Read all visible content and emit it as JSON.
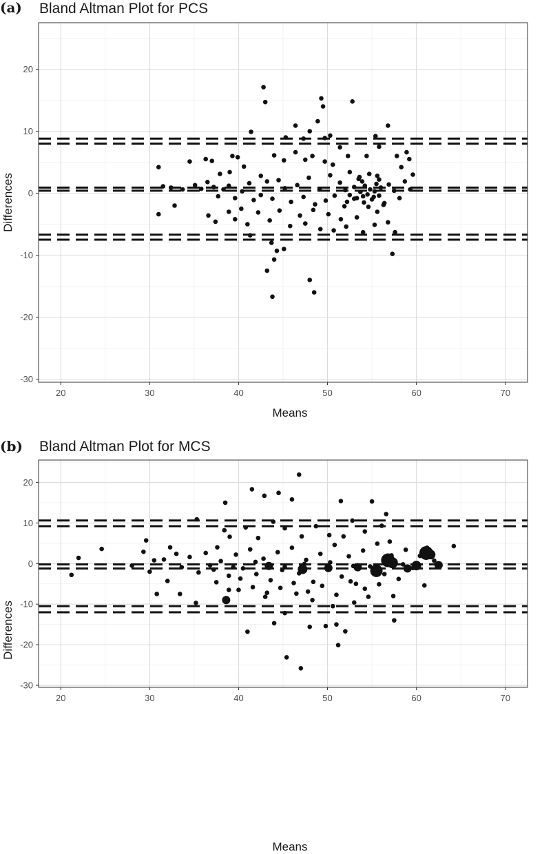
{
  "chart_data": [
    {
      "type": "scatter",
      "panel_label": "(a)",
      "title": "Bland Altman Plot for PCS",
      "xlabel": "Means",
      "ylabel": "Differences",
      "xlim": [
        17.5,
        72.5
      ],
      "ylim": [
        -30.5,
        27.5
      ],
      "x_ticks": [
        20,
        30,
        40,
        50,
        60,
        70
      ],
      "y_ticks": [
        -30,
        -20,
        -10,
        0,
        10,
        20
      ],
      "grid": true,
      "reference_lines": [
        8.8,
        8.0,
        0.9,
        0.4,
        -6.7,
        -7.5
      ],
      "points": [
        [
          42.8,
          17.1
        ],
        [
          43.0,
          14.7
        ],
        [
          49.3,
          15.3
        ],
        [
          49.5,
          14.0
        ],
        [
          52.8,
          14.8
        ],
        [
          46.4,
          10.9
        ],
        [
          48.9,
          11.6
        ],
        [
          47.3,
          8.8
        ],
        [
          48.0,
          10.0
        ],
        [
          41.4,
          9.9
        ],
        [
          45.3,
          9.0
        ],
        [
          49.7,
          8.9
        ],
        [
          56.8,
          10.9
        ],
        [
          55.4,
          9.2
        ],
        [
          50.3,
          9.3
        ],
        [
          31.0,
          4.2
        ],
        [
          34.5,
          5.1
        ],
        [
          36.3,
          5.5
        ],
        [
          37.0,
          5.2
        ],
        [
          39.3,
          6.0
        ],
        [
          39.9,
          5.8
        ],
        [
          37.9,
          3.1
        ],
        [
          39.0,
          3.4
        ],
        [
          40.6,
          4.3
        ],
        [
          42.5,
          2.8
        ],
        [
          44.0,
          6.1
        ],
        [
          45.1,
          5.3
        ],
        [
          46.4,
          6.6
        ],
        [
          47.5,
          5.4
        ],
        [
          48.3,
          6.0
        ],
        [
          49.7,
          5.1
        ],
        [
          50.6,
          4.6
        ],
        [
          52.3,
          6.0
        ],
        [
          51.4,
          7.4
        ],
        [
          54.4,
          6.0
        ],
        [
          55.8,
          7.5
        ],
        [
          57.8,
          6.0
        ],
        [
          58.9,
          6.6
        ],
        [
          59.2,
          5.5
        ],
        [
          59.6,
          3.0
        ],
        [
          58.3,
          4.2
        ],
        [
          31.5,
          1.1
        ],
        [
          32.4,
          0.9
        ],
        [
          33.7,
          0.6
        ],
        [
          35.1,
          1.3
        ],
        [
          35.8,
          0.7
        ],
        [
          36.5,
          1.8
        ],
        [
          37.2,
          1.0
        ],
        [
          37.7,
          -0.5
        ],
        [
          38.3,
          0.6
        ],
        [
          38.9,
          1.2
        ],
        [
          39.6,
          -0.8
        ],
        [
          40.4,
          0.3
        ],
        [
          41.2,
          1.6
        ],
        [
          41.7,
          -1.1
        ],
        [
          42.5,
          -0.3
        ],
        [
          43.2,
          1.9
        ],
        [
          43.8,
          -0.9
        ],
        [
          44.5,
          2.1
        ],
        [
          45.2,
          0.8
        ],
        [
          45.9,
          -1.4
        ],
        [
          46.6,
          1.3
        ],
        [
          47.3,
          -0.6
        ],
        [
          47.9,
          2.5
        ],
        [
          48.6,
          -1.8
        ],
        [
          49.1,
          0.6
        ],
        [
          49.8,
          -1.2
        ],
        [
          50.3,
          2.9
        ],
        [
          50.8,
          -0.4
        ],
        [
          51.4,
          1.7
        ],
        [
          51.9,
          -2.1
        ],
        [
          52.5,
          3.4
        ],
        [
          53.0,
          -0.9
        ],
        [
          53.6,
          2.6
        ],
        [
          54.1,
          -1.5
        ],
        [
          54.7,
          3.1
        ],
        [
          55.2,
          -0.6
        ],
        [
          55.8,
          2.2
        ],
        [
          56.3,
          -1.9
        ],
        [
          56.9,
          1.4
        ],
        [
          57.5,
          0.4
        ],
        [
          58.1,
          -0.8
        ],
        [
          58.7,
          1.9
        ],
        [
          59.3,
          0.6
        ],
        [
          31.0,
          -3.4
        ],
        [
          32.8,
          -2.0
        ],
        [
          36.6,
          -3.6
        ],
        [
          37.4,
          -4.6
        ],
        [
          38.9,
          -3.0
        ],
        [
          39.6,
          -4.2
        ],
        [
          40.3,
          -2.5
        ],
        [
          41.0,
          -5.0
        ],
        [
          42.2,
          -3.1
        ],
        [
          43.5,
          -4.4
        ],
        [
          44.6,
          -2.8
        ],
        [
          45.8,
          -5.3
        ],
        [
          46.9,
          -3.6
        ],
        [
          47.5,
          -4.9
        ],
        [
          48.4,
          -2.7
        ],
        [
          49.2,
          -5.8
        ],
        [
          50.1,
          -3.4
        ],
        [
          50.7,
          -6.0
        ],
        [
          51.5,
          -4.2
        ],
        [
          52.1,
          -5.4
        ],
        [
          53.3,
          -3.9
        ],
        [
          54.0,
          -6.3
        ],
        [
          55.6,
          -3.0
        ],
        [
          56.8,
          -4.7
        ],
        [
          57.6,
          -6.3
        ],
        [
          55.3,
          -5.1
        ],
        [
          41.3,
          -6.8
        ],
        [
          43.2,
          -12.5
        ],
        [
          43.7,
          -8.0
        ],
        [
          44.3,
          -9.3
        ],
        [
          44.0,
          -10.7
        ],
        [
          45.1,
          -9.0
        ],
        [
          48.0,
          -14.0
        ],
        [
          48.5,
          -16.0
        ],
        [
          43.8,
          -16.7
        ],
        [
          57.3,
          -9.8
        ],
        [
          52.0,
          0.5
        ],
        [
          52.5,
          -0.3
        ],
        [
          53.0,
          1.0
        ],
        [
          53.3,
          -0.8
        ],
        [
          53.7,
          0.2
        ],
        [
          54.0,
          -0.5
        ],
        [
          54.2,
          1.2
        ],
        [
          54.5,
          -0.2
        ],
        [
          54.8,
          0.6
        ],
        [
          55.0,
          -1.0
        ],
        [
          55.3,
          0.3
        ],
        [
          55.5,
          1.5
        ],
        [
          55.8,
          -0.4
        ],
        [
          56.0,
          0.9
        ],
        [
          53.5,
          2.3
        ],
        [
          54.6,
          -2.2
        ],
        [
          55.6,
          2.8
        ],
        [
          56.4,
          -1.6
        ],
        [
          53.9,
          1.9
        ],
        [
          52.2,
          -1.4
        ]
      ]
    },
    {
      "type": "scatter",
      "panel_label": "(b)",
      "title": "Bland Altman Plot for MCS",
      "xlabel": "Means",
      "ylabel": "Differences",
      "xlim": [
        17.5,
        72.5
      ],
      "ylim": [
        -30.5,
        25.5
      ],
      "x_ticks": [
        20,
        30,
        40,
        50,
        60,
        70
      ],
      "y_ticks": [
        -30,
        -20,
        -10,
        0,
        10,
        20
      ],
      "grid": true,
      "reference_lines": [
        10.6,
        9.2,
        -0.2,
        -1.2,
        -10.5,
        -12.0
      ],
      "points": [
        [
          21.2,
          -2.8
        ],
        [
          22.0,
          1.4
        ],
        [
          24.6,
          3.6
        ],
        [
          29.6,
          5.7
        ],
        [
          29.3,
          2.9
        ],
        [
          30.8,
          -7.5
        ],
        [
          32.0,
          -4.3
        ],
        [
          33.4,
          -7.5
        ],
        [
          35.2,
          -9.7
        ],
        [
          35.3,
          10.9
        ],
        [
          37.6,
          4.0
        ],
        [
          38.4,
          8.2
        ],
        [
          38.5,
          15.0
        ],
        [
          41.0,
          -16.8
        ],
        [
          41.5,
          18.3
        ],
        [
          42.9,
          16.7
        ],
        [
          44.5,
          17.4
        ],
        [
          46.0,
          15.8
        ],
        [
          46.8,
          21.9
        ],
        [
          47.0,
          -25.8
        ],
        [
          45.4,
          -23.1
        ],
        [
          45.2,
          -12.2
        ],
        [
          51.5,
          15.4
        ],
        [
          55.0,
          15.3
        ],
        [
          56.6,
          12.2
        ],
        [
          57.4,
          -8.0
        ],
        [
          57.5,
          -14.0
        ],
        [
          60.9,
          -5.4
        ],
        [
          64.2,
          4.3
        ],
        [
          51.2,
          -20.1
        ],
        [
          48.0,
          -15.6
        ],
        [
          49.8,
          -15.4
        ],
        [
          51.0,
          -15.0
        ],
        [
          52.0,
          -16.7
        ],
        [
          44.0,
          -14.7
        ],
        [
          40.0,
          -6.5
        ],
        [
          43.0,
          -8.2
        ],
        [
          46.5,
          -7.4
        ],
        [
          48.3,
          -9.0
        ],
        [
          50.6,
          -10.5
        ],
        [
          53.0,
          -9.6
        ],
        [
          54.6,
          -8.2
        ],
        [
          31.6,
          1.0
        ],
        [
          32.3,
          4.0
        ],
        [
          33.6,
          -0.9
        ],
        [
          34.5,
          1.6
        ],
        [
          35.5,
          -2.2
        ],
        [
          36.3,
          2.6
        ],
        [
          37.2,
          -1.5
        ],
        [
          38.0,
          0.6
        ],
        [
          38.9,
          -3.0
        ],
        [
          39.7,
          2.2
        ],
        [
          40.5,
          -1.2
        ],
        [
          41.3,
          3.5
        ],
        [
          42.0,
          -2.6
        ],
        [
          42.8,
          1.2
        ],
        [
          43.6,
          -4.1
        ],
        [
          44.4,
          2.8
        ],
        [
          45.2,
          -0.8
        ],
        [
          46.0,
          3.9
        ],
        [
          46.8,
          -2.4
        ],
        [
          47.6,
          0.9
        ],
        [
          48.4,
          -4.5
        ],
        [
          49.2,
          2.4
        ],
        [
          50.0,
          -1.5
        ],
        [
          50.8,
          4.6
        ],
        [
          51.6,
          -3.2
        ],
        [
          52.4,
          1.8
        ],
        [
          53.2,
          -5.0
        ],
        [
          54.0,
          3.2
        ],
        [
          54.8,
          -0.7
        ],
        [
          55.6,
          4.9
        ],
        [
          56.4,
          -2.6
        ],
        [
          57.2,
          2.0
        ],
        [
          58.0,
          -3.8
        ],
        [
          58.8,
          3.4
        ],
        [
          59.6,
          -1.1
        ],
        [
          60.4,
          1.9
        ],
        [
          61.2,
          3.9
        ],
        [
          62.0,
          0.7
        ],
        [
          39.0,
          6.6
        ],
        [
          40.8,
          8.9
        ],
        [
          42.2,
          6.3
        ],
        [
          43.9,
          10.3
        ],
        [
          45.2,
          8.7
        ],
        [
          47.1,
          6.7
        ],
        [
          48.7,
          9.2
        ],
        [
          50.2,
          7.0
        ],
        [
          51.8,
          6.7
        ],
        [
          52.8,
          10.6
        ],
        [
          54.2,
          7.9
        ],
        [
          56.1,
          9.3
        ],
        [
          57.0,
          5.4
        ],
        [
          37.5,
          -4.6
        ],
        [
          38.9,
          -6.5
        ],
        [
          40.2,
          -3.7
        ],
        [
          41.6,
          -5.8
        ],
        [
          43.2,
          -7.2
        ],
        [
          44.7,
          -6.0
        ],
        [
          46.2,
          -4.8
        ],
        [
          47.8,
          -6.9
        ],
        [
          49.4,
          -5.5
        ],
        [
          51.0,
          -7.7
        ],
        [
          52.6,
          -4.4
        ],
        [
          54.2,
          -6.2
        ],
        [
          55.8,
          -5.1
        ],
        [
          28.0,
          -0.5
        ],
        [
          30.0,
          -2.0
        ],
        [
          30.5,
          0.8
        ],
        [
          33.0,
          2.4
        ],
        [
          36.8,
          -0.4
        ],
        [
          39.4,
          -0.9
        ],
        [
          41.9,
          0.4
        ],
        [
          44.9,
          -1.6
        ],
        [
          47.4,
          -0.1
        ],
        [
          50.3,
          0.3
        ],
        [
          52.9,
          -0.6
        ],
        [
          55.3,
          -1.9
        ],
        [
          58.5,
          -0.2
        ]
      ],
      "big_points": [
        [
          38.6,
          -9.0,
          6
        ],
        [
          56.8,
          0.8,
          10
        ],
        [
          57.3,
          0.2,
          8
        ],
        [
          61.1,
          2.6,
          10
        ],
        [
          61.6,
          2.2,
          7
        ],
        [
          55.5,
          -1.8,
          9
        ],
        [
          60.0,
          -0.5,
          7
        ],
        [
          59.0,
          -1.2,
          6
        ],
        [
          62.5,
          -0.4,
          6
        ],
        [
          47.2,
          -1.4,
          7
        ],
        [
          43.4,
          -0.6,
          6
        ],
        [
          50.1,
          -1.1,
          6
        ],
        [
          53.4,
          -0.9,
          6
        ]
      ]
    }
  ]
}
